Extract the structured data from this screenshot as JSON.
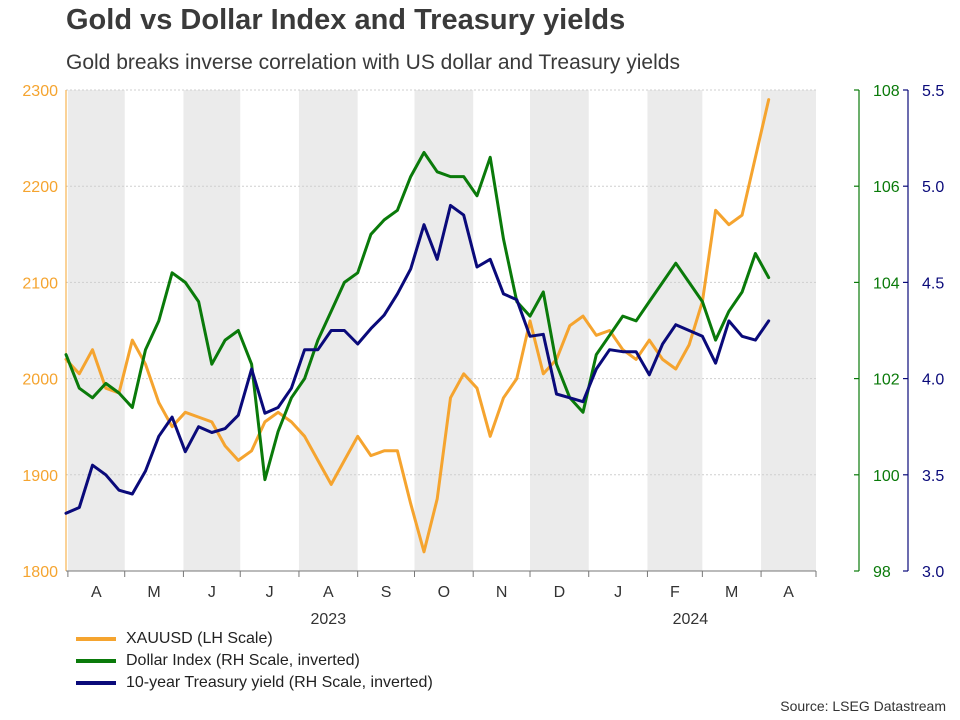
{
  "title": "Gold vs Dollar Index and Treasury yields",
  "subtitle": "Gold breaks inverse correlation with US dollar and Treasury yields",
  "source": "Source: LSEG Datastream",
  "colors": {
    "gold": "#f5a42f",
    "dxy": "#0a7a0a",
    "yield": "#0a0a7a",
    "shade": "#ebebeb"
  },
  "chart_data": {
    "type": "line",
    "x_type": "weekly dates",
    "x_range": [
      "2023-03-31",
      "2024-04-30"
    ],
    "month_labels": [
      "A",
      "M",
      "J",
      "J",
      "A",
      "S",
      "O",
      "N",
      "D",
      "J",
      "F",
      "M",
      "A"
    ],
    "year_labels": [
      "2023",
      "2024"
    ],
    "shaded_months": [
      0,
      2,
      4,
      6,
      8,
      10,
      12
    ],
    "axes": {
      "left": {
        "label": "XAUUSD (LH Scale)",
        "ylim": [
          1800,
          2300
        ],
        "ticks": [
          "1800",
          "1900",
          "2000",
          "2100",
          "2200",
          "2300"
        ]
      },
      "right1": {
        "label": "Dollar Index (RH Scale, inverted)",
        "ylim": [
          108,
          98
        ],
        "inverted": true,
        "ticks": [
          "98",
          "100",
          "102",
          "104",
          "106",
          "108"
        ]
      },
      "right2": {
        "label": "10-year Treasury yield (RH Scale, inverted)",
        "ylim": [
          5.5,
          3.0
        ],
        "inverted": true,
        "ticks": [
          "3.0",
          "3.5",
          "4.0",
          "4.5",
          "5.0",
          "5.5"
        ]
      }
    },
    "series": [
      {
        "name": "XAUUSD (LH Scale)",
        "axis": "left",
        "color": "#f5a42f",
        "points": [
          [
            "2023-03-31",
            2020
          ],
          [
            "2023-04-07",
            2005
          ],
          [
            "2023-04-14",
            2030
          ],
          [
            "2023-04-21",
            1990
          ],
          [
            "2023-04-28",
            1985
          ],
          [
            "2023-05-05",
            2040
          ],
          [
            "2023-05-12",
            2015
          ],
          [
            "2023-05-19",
            1975
          ],
          [
            "2023-05-26",
            1950
          ],
          [
            "2023-06-02",
            1965
          ],
          [
            "2023-06-09",
            1960
          ],
          [
            "2023-06-16",
            1955
          ],
          [
            "2023-06-23",
            1930
          ],
          [
            "2023-06-30",
            1915
          ],
          [
            "2023-07-07",
            1925
          ],
          [
            "2023-07-14",
            1955
          ],
          [
            "2023-07-21",
            1965
          ],
          [
            "2023-07-28",
            1955
          ],
          [
            "2023-08-04",
            1940
          ],
          [
            "2023-08-11",
            1915
          ],
          [
            "2023-08-18",
            1890
          ],
          [
            "2023-08-25",
            1915
          ],
          [
            "2023-09-01",
            1940
          ],
          [
            "2023-09-08",
            1920
          ],
          [
            "2023-09-15",
            1925
          ],
          [
            "2023-09-22",
            1925
          ],
          [
            "2023-09-29",
            1870
          ],
          [
            "2023-10-06",
            1820
          ],
          [
            "2023-10-13",
            1875
          ],
          [
            "2023-10-20",
            1980
          ],
          [
            "2023-10-27",
            2005
          ],
          [
            "2023-11-03",
            1990
          ],
          [
            "2023-11-10",
            1940
          ],
          [
            "2023-11-17",
            1980
          ],
          [
            "2023-11-24",
            2000
          ],
          [
            "2023-12-01",
            2060
          ],
          [
            "2023-12-08",
            2005
          ],
          [
            "2023-12-15",
            2020
          ],
          [
            "2023-12-22",
            2055
          ],
          [
            "2023-12-29",
            2065
          ],
          [
            "2024-01-05",
            2045
          ],
          [
            "2024-01-12",
            2050
          ],
          [
            "2024-01-19",
            2030
          ],
          [
            "2024-01-26",
            2020
          ],
          [
            "2024-02-02",
            2040
          ],
          [
            "2024-02-09",
            2020
          ],
          [
            "2024-02-16",
            2010
          ],
          [
            "2024-02-23",
            2035
          ],
          [
            "2024-03-01",
            2080
          ],
          [
            "2024-03-08",
            2175
          ],
          [
            "2024-03-15",
            2160
          ],
          [
            "2024-03-22",
            2170
          ],
          [
            "2024-03-29",
            2230
          ],
          [
            "2024-04-05",
            2290
          ]
        ]
      },
      {
        "name": "Dollar Index (RH Scale, inverted)",
        "axis": "right1",
        "color": "#0a7a0a",
        "points": [
          [
            "2023-03-31",
            102.5
          ],
          [
            "2023-04-07",
            101.8
          ],
          [
            "2023-04-14",
            101.6
          ],
          [
            "2023-04-21",
            101.9
          ],
          [
            "2023-04-28",
            101.7
          ],
          [
            "2023-05-05",
            101.4
          ],
          [
            "2023-05-12",
            102.6
          ],
          [
            "2023-05-19",
            103.2
          ],
          [
            "2023-05-26",
            104.2
          ],
          [
            "2023-06-02",
            104.0
          ],
          [
            "2023-06-09",
            103.6
          ],
          [
            "2023-06-16",
            102.3
          ],
          [
            "2023-06-23",
            102.8
          ],
          [
            "2023-06-30",
            103.0
          ],
          [
            "2023-07-07",
            102.3
          ],
          [
            "2023-07-14",
            99.9
          ],
          [
            "2023-07-21",
            100.9
          ],
          [
            "2023-07-28",
            101.6
          ],
          [
            "2023-08-04",
            102.0
          ],
          [
            "2023-08-11",
            102.8
          ],
          [
            "2023-08-18",
            103.4
          ],
          [
            "2023-08-25",
            104.0
          ],
          [
            "2023-09-01",
            104.2
          ],
          [
            "2023-09-08",
            105.0
          ],
          [
            "2023-09-15",
            105.3
          ],
          [
            "2023-09-22",
            105.5
          ],
          [
            "2023-09-29",
            106.2
          ],
          [
            "2023-10-06",
            106.7
          ],
          [
            "2023-10-13",
            106.3
          ],
          [
            "2023-10-20",
            106.2
          ],
          [
            "2023-10-27",
            106.2
          ],
          [
            "2023-11-03",
            105.8
          ],
          [
            "2023-11-10",
            106.6
          ],
          [
            "2023-11-17",
            104.9
          ],
          [
            "2023-11-24",
            103.6
          ],
          [
            "2023-12-01",
            103.3
          ],
          [
            "2023-12-08",
            103.8
          ],
          [
            "2023-12-15",
            102.3
          ],
          [
            "2023-12-22",
            101.6
          ],
          [
            "2023-12-29",
            101.3
          ],
          [
            "2024-01-05",
            102.5
          ],
          [
            "2024-01-12",
            102.9
          ],
          [
            "2024-01-19",
            103.3
          ],
          [
            "2024-01-26",
            103.2
          ],
          [
            "2024-02-02",
            103.6
          ],
          [
            "2024-02-09",
            104.0
          ],
          [
            "2024-02-16",
            104.4
          ],
          [
            "2024-02-23",
            104.0
          ],
          [
            "2024-03-01",
            103.6
          ],
          [
            "2024-03-08",
            102.8
          ],
          [
            "2024-03-15",
            103.4
          ],
          [
            "2024-03-22",
            103.8
          ],
          [
            "2024-03-29",
            104.6
          ],
          [
            "2024-04-05",
            104.1
          ]
        ]
      },
      {
        "name": "10-year Treasury yield (RH Scale, inverted)",
        "axis": "right2",
        "color": "#0a0a7a",
        "points": [
          [
            "2023-03-31",
            3.3
          ],
          [
            "2023-04-07",
            3.33
          ],
          [
            "2023-04-14",
            3.55
          ],
          [
            "2023-04-21",
            3.5
          ],
          [
            "2023-04-28",
            3.42
          ],
          [
            "2023-05-05",
            3.4
          ],
          [
            "2023-05-12",
            3.52
          ],
          [
            "2023-05-19",
            3.7
          ],
          [
            "2023-05-26",
            3.8
          ],
          [
            "2023-06-02",
            3.62
          ],
          [
            "2023-06-09",
            3.75
          ],
          [
            "2023-06-16",
            3.72
          ],
          [
            "2023-06-23",
            3.74
          ],
          [
            "2023-06-30",
            3.81
          ],
          [
            "2023-07-07",
            4.05
          ],
          [
            "2023-07-14",
            3.82
          ],
          [
            "2023-07-21",
            3.85
          ],
          [
            "2023-07-28",
            3.95
          ],
          [
            "2023-08-04",
            4.15
          ],
          [
            "2023-08-11",
            4.15
          ],
          [
            "2023-08-18",
            4.25
          ],
          [
            "2023-08-25",
            4.25
          ],
          [
            "2023-09-01",
            4.18
          ],
          [
            "2023-09-08",
            4.26
          ],
          [
            "2023-09-15",
            4.33
          ],
          [
            "2023-09-22",
            4.44
          ],
          [
            "2023-09-29",
            4.57
          ],
          [
            "2023-10-06",
            4.8
          ],
          [
            "2023-10-13",
            4.62
          ],
          [
            "2023-10-20",
            4.9
          ],
          [
            "2023-10-27",
            4.85
          ],
          [
            "2023-11-03",
            4.58
          ],
          [
            "2023-11-10",
            4.62
          ],
          [
            "2023-11-17",
            4.44
          ],
          [
            "2023-11-24",
            4.41
          ],
          [
            "2023-12-01",
            4.22
          ],
          [
            "2023-12-08",
            4.23
          ],
          [
            "2023-12-15",
            3.92
          ],
          [
            "2023-12-22",
            3.9
          ],
          [
            "2023-12-29",
            3.88
          ],
          [
            "2024-01-05",
            4.05
          ],
          [
            "2024-01-12",
            4.15
          ],
          [
            "2024-01-19",
            4.14
          ],
          [
            "2024-01-26",
            4.14
          ],
          [
            "2024-02-02",
            4.02
          ],
          [
            "2024-02-09",
            4.18
          ],
          [
            "2024-02-16",
            4.28
          ],
          [
            "2024-02-23",
            4.25
          ],
          [
            "2024-03-01",
            4.22
          ],
          [
            "2024-03-08",
            4.08
          ],
          [
            "2024-03-15",
            4.3
          ],
          [
            "2024-03-22",
            4.22
          ],
          [
            "2024-03-29",
            4.2
          ],
          [
            "2024-04-05",
            4.3
          ]
        ]
      }
    ]
  }
}
